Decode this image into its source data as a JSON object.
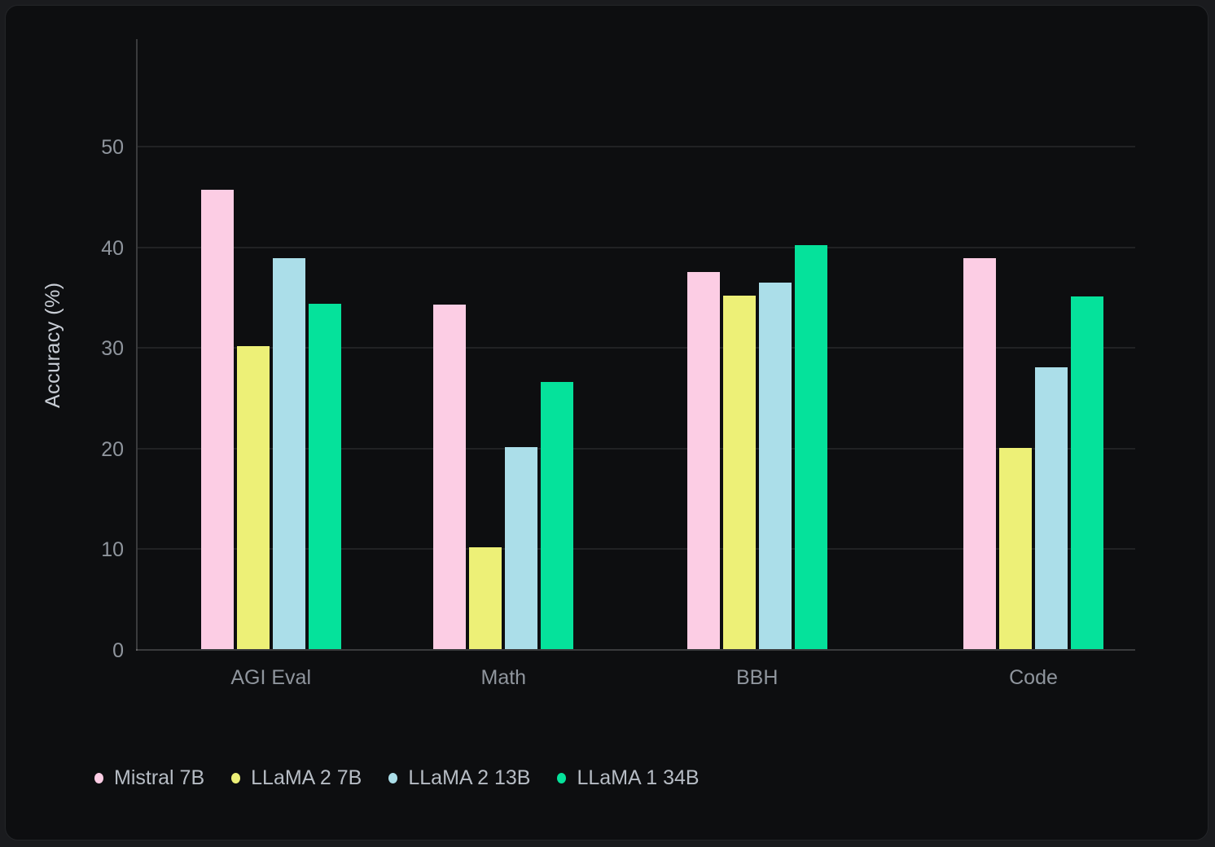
{
  "chart_data": {
    "type": "bar",
    "title": "",
    "ylabel": "Accuracy (%)",
    "xlabel": "",
    "categories": [
      "AGI Eval",
      "Math",
      "BBH",
      "Code"
    ],
    "series": [
      {
        "name": "Mistral 7B",
        "color": "#fccde4",
        "values": [
          45.6,
          34.2,
          37.5,
          38.8
        ]
      },
      {
        "name": "LLaMA 2 7B",
        "color": "#edf077",
        "values": [
          30.1,
          10.1,
          35.1,
          20.0
        ]
      },
      {
        "name": "LLaMA 2 13B",
        "color": "#abdee9",
        "values": [
          38.8,
          20.1,
          36.4,
          28.0
        ]
      },
      {
        "name": "LLaMA 1 34B",
        "color": "#05e29b",
        "values": [
          34.3,
          26.5,
          40.1,
          35.0
        ]
      }
    ],
    "yticks": [
      0,
      10,
      20,
      30,
      40,
      50
    ],
    "ylim": [
      0,
      60.8
    ],
    "grid": true,
    "legend_position": "bottom-left",
    "theme": {
      "background": "#0d0e10",
      "outer_background": "#1a1b1e",
      "gridline_color": "#26282b",
      "axis_color": "#3c3f44",
      "tick_text_color": "#8f959d",
      "axis_title_color": "#c9ced6",
      "legend_text_color": "#b6bcc4"
    }
  }
}
